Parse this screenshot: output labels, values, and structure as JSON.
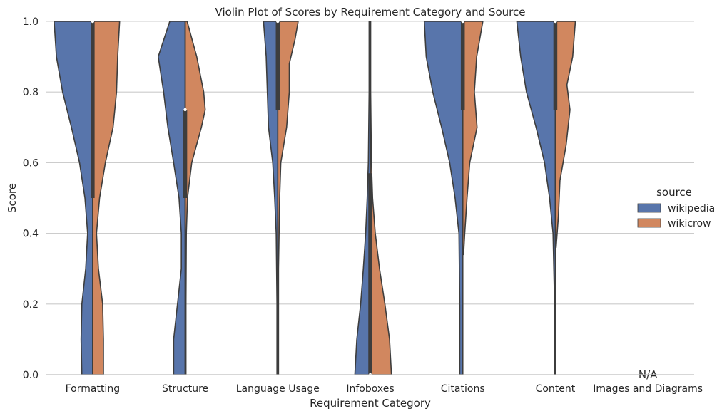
{
  "chart_data": {
    "type": "violin",
    "title": "Violin Plot of Scores by Requirement Category and Source",
    "xlabel": "Requirement Category",
    "ylabel": "Score",
    "ylim": [
      0.0,
      1.0
    ],
    "yticks": [
      "0.0",
      "0.2",
      "0.4",
      "0.6",
      "0.8",
      "1.0"
    ],
    "categories": [
      "Formatting",
      "Structure",
      "Language Usage",
      "Infoboxes",
      "Citations",
      "Content",
      "Images and Diagrams"
    ],
    "legend": {
      "title": "source",
      "placement": "right",
      "entries": [
        {
          "name": "wikipedia",
          "color": "#5875ab"
        },
        {
          "name": "wikicrow",
          "color": "#d1875f"
        }
      ]
    },
    "grid": "horizontal",
    "series": [
      {
        "name": "wikipedia",
        "side": "left",
        "violins": [
          {
            "category": "Formatting",
            "density": [
              [
                0.0,
                0.28
              ],
              [
                0.1,
                0.3
              ],
              [
                0.2,
                0.28
              ],
              [
                0.3,
                0.18
              ],
              [
                0.4,
                0.13
              ],
              [
                0.5,
                0.2
              ],
              [
                0.6,
                0.34
              ],
              [
                0.7,
                0.55
              ],
              [
                0.8,
                0.78
              ],
              [
                0.9,
                0.94
              ],
              [
                1.0,
                1.0
              ]
            ],
            "iqr": [
              0.5,
              1.0
            ],
            "median": 1.0,
            "whisker": [
              0.0,
              1.0
            ]
          },
          {
            "category": "Structure",
            "density": [
              [
                0.0,
                0.3
              ],
              [
                0.1,
                0.3
              ],
              [
                0.2,
                0.2
              ],
              [
                0.3,
                0.1
              ],
              [
                0.4,
                0.1
              ],
              [
                0.5,
                0.16
              ],
              [
                0.6,
                0.3
              ],
              [
                0.7,
                0.45
              ],
              [
                0.8,
                0.56
              ],
              [
                0.9,
                0.7
              ],
              [
                1.0,
                0.4
              ]
            ],
            "iqr": [
              0.5,
              0.75
            ],
            "median": 0.75,
            "whisker": [
              0.0,
              1.0
            ]
          },
          {
            "category": "Language Usage",
            "density": [
              [
                0.0,
                0.02
              ],
              [
                0.2,
                0.02
              ],
              [
                0.4,
                0.04
              ],
              [
                0.5,
                0.08
              ],
              [
                0.6,
                0.13
              ],
              [
                0.7,
                0.24
              ],
              [
                0.8,
                0.27
              ],
              [
                0.9,
                0.3
              ],
              [
                1.0,
                0.37
              ]
            ],
            "iqr": [
              0.75,
              1.0
            ],
            "median": 1.0,
            "whisker": [
              0.0,
              1.0
            ]
          },
          {
            "category": "Infoboxes",
            "density": [
              [
                0.0,
                0.4
              ],
              [
                0.1,
                0.35
              ],
              [
                0.2,
                0.25
              ],
              [
                0.3,
                0.18
              ],
              [
                0.4,
                0.12
              ],
              [
                0.5,
                0.08
              ],
              [
                0.6,
                0.05
              ],
              [
                0.7,
                0.04
              ],
              [
                0.8,
                0.03
              ],
              [
                0.9,
                0.03
              ],
              [
                1.0,
                0.03
              ]
            ],
            "iqr": [
              0.0,
              0.57
            ],
            "median": 0.0,
            "whisker": [
              0.0,
              1.0
            ]
          },
          {
            "category": "Citations",
            "density": [
              [
                0.0,
                0.08
              ],
              [
                0.2,
                0.08
              ],
              [
                0.4,
                0.1
              ],
              [
                0.5,
                0.2
              ],
              [
                0.6,
                0.34
              ],
              [
                0.7,
                0.55
              ],
              [
                0.8,
                0.78
              ],
              [
                0.9,
                0.95
              ],
              [
                1.0,
                1.0
              ]
            ],
            "iqr": [
              0.75,
              1.0
            ],
            "median": 1.0,
            "whisker": [
              0.0,
              1.0
            ]
          },
          {
            "category": "Content",
            "density": [
              [
                0.0,
                0.02
              ],
              [
                0.2,
                0.02
              ],
              [
                0.4,
                0.06
              ],
              [
                0.5,
                0.15
              ],
              [
                0.6,
                0.28
              ],
              [
                0.7,
                0.5
              ],
              [
                0.8,
                0.75
              ],
              [
                0.9,
                0.9
              ],
              [
                1.0,
                1.0
              ]
            ],
            "iqr": [
              0.75,
              1.0
            ],
            "median": 1.0,
            "whisker": [
              0.0,
              1.0
            ]
          }
        ]
      },
      {
        "name": "wikicrow",
        "side": "right",
        "violins": [
          {
            "category": "Formatting",
            "density": [
              [
                0.0,
                0.28
              ],
              [
                0.1,
                0.28
              ],
              [
                0.2,
                0.26
              ],
              [
                0.3,
                0.15
              ],
              [
                0.4,
                0.1
              ],
              [
                0.5,
                0.18
              ],
              [
                0.6,
                0.33
              ],
              [
                0.7,
                0.53
              ],
              [
                0.8,
                0.62
              ],
              [
                0.9,
                0.65
              ],
              [
                1.0,
                0.7
              ]
            ]
          },
          {
            "category": "Structure",
            "density": [
              [
                0.0,
                0.02
              ],
              [
                0.2,
                0.02
              ],
              [
                0.4,
                0.03
              ],
              [
                0.5,
                0.06
              ],
              [
                0.6,
                0.17
              ],
              [
                0.7,
                0.42
              ],
              [
                0.75,
                0.52
              ],
              [
                0.8,
                0.48
              ],
              [
                0.9,
                0.3
              ],
              [
                1.0,
                0.05
              ]
            ]
          },
          {
            "category": "Language Usage",
            "density": [
              [
                0.0,
                0.02
              ],
              [
                0.3,
                0.02
              ],
              [
                0.5,
                0.05
              ],
              [
                0.6,
                0.08
              ],
              [
                0.7,
                0.23
              ],
              [
                0.8,
                0.3
              ],
              [
                0.88,
                0.3
              ],
              [
                0.95,
                0.45
              ],
              [
                1.0,
                0.53
              ]
            ]
          },
          {
            "category": "Infoboxes",
            "density": [
              [
                0.0,
                0.55
              ],
              [
                0.1,
                0.5
              ],
              [
                0.2,
                0.38
              ],
              [
                0.3,
                0.24
              ],
              [
                0.4,
                0.13
              ],
              [
                0.5,
                0.06
              ],
              [
                0.6,
                0.03
              ],
              [
                0.7,
                0.02
              ],
              [
                0.8,
                0.01
              ],
              [
                1.0,
                0.01
              ]
            ]
          },
          {
            "category": "Citations",
            "density": [
              [
                0.34,
                0.02
              ],
              [
                0.4,
                0.05
              ],
              [
                0.5,
                0.11
              ],
              [
                0.6,
                0.18
              ],
              [
                0.7,
                0.37
              ],
              [
                0.8,
                0.3
              ],
              [
                0.9,
                0.36
              ],
              [
                1.0,
                0.52
              ]
            ]
          },
          {
            "category": "Content",
            "density": [
              [
                0.36,
                0.02
              ],
              [
                0.45,
                0.08
              ],
              [
                0.55,
                0.12
              ],
              [
                0.65,
                0.28
              ],
              [
                0.75,
                0.38
              ],
              [
                0.82,
                0.3
              ],
              [
                0.9,
                0.45
              ],
              [
                1.0,
                0.52
              ]
            ]
          }
        ]
      }
    ],
    "annotations": [
      {
        "category": "Images and Diagrams",
        "text": "N/A"
      }
    ]
  }
}
